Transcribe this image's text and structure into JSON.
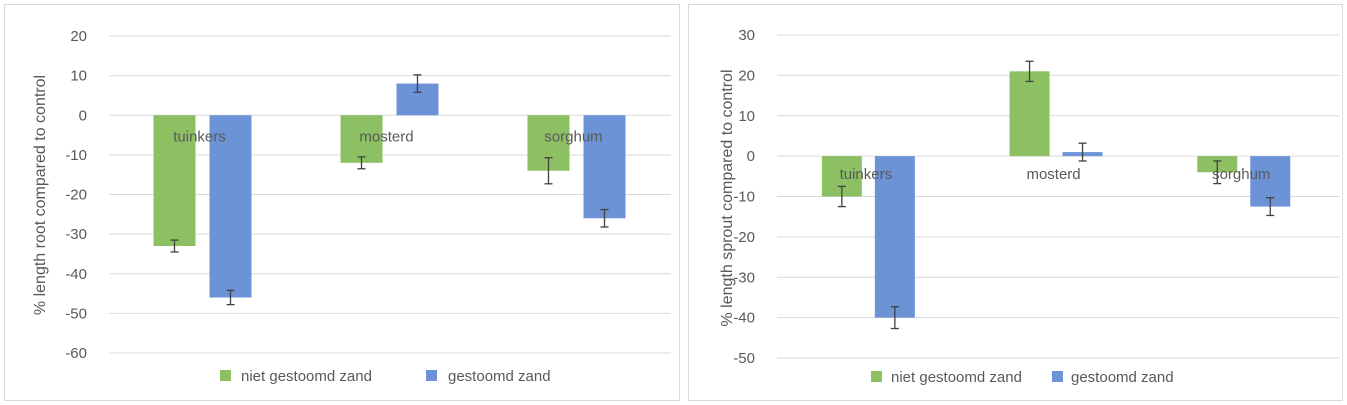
{
  "colors": {
    "series1": "#8cc063",
    "series2": "#6b93d6",
    "grid": "#d9d9d9",
    "text": "#595959",
    "errorbar": "#404040"
  },
  "chart_data": [
    {
      "type": "bar",
      "title": "",
      "xlabel": "",
      "ylabel": "% length root compared to control",
      "categories": [
        "tuinkers",
        "mosterd",
        "sorghum"
      ],
      "series": [
        {
          "name": "niet gestoomd zand",
          "values": [
            -33,
            -12,
            -14
          ],
          "errors": [
            1.5,
            1.5,
            3.3
          ]
        },
        {
          "name": "gestoomd zand",
          "values": [
            -46,
            8,
            -26
          ],
          "errors": [
            1.8,
            2.2,
            2.2
          ]
        }
      ],
      "ylim": [
        -60,
        20
      ],
      "yticks": [
        20,
        10,
        0,
        -10,
        -20,
        -30,
        -40,
        -50,
        -60
      ],
      "grid": true,
      "legend": "bottom"
    },
    {
      "type": "bar",
      "title": "",
      "xlabel": "",
      "ylabel": "% length sprout compared to control",
      "categories": [
        "tuinkers",
        "mosterd",
        "sorghum"
      ],
      "series": [
        {
          "name": "niet gestoomd zand",
          "values": [
            -10,
            21,
            -4
          ],
          "errors": [
            2.5,
            2.5,
            2.8
          ]
        },
        {
          "name": "gestoomd zand",
          "values": [
            -40,
            1,
            -12.5
          ],
          "errors": [
            2.7,
            2.2,
            2.2
          ]
        }
      ],
      "ylim": [
        -50,
        30
      ],
      "yticks": [
        30,
        20,
        10,
        0,
        -10,
        -20,
        -30,
        -40,
        -50
      ],
      "grid": true,
      "legend": "bottom"
    }
  ]
}
